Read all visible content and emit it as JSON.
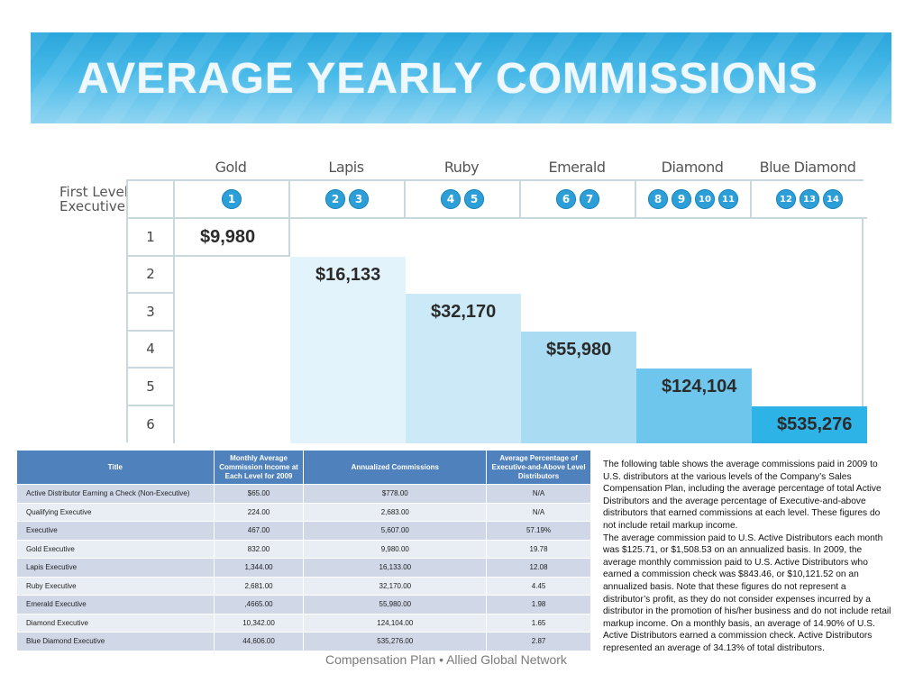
{
  "banner": {
    "title": "AVERAGE YEARLY COMMISSIONS"
  },
  "stair": {
    "first_level_label": "First Level Executives",
    "levels": [
      {
        "name": "Gold",
        "badges": [
          "1"
        ],
        "amount": "$9,980"
      },
      {
        "name": "Lapis",
        "badges": [
          "2",
          "3"
        ],
        "amount": "$16,133"
      },
      {
        "name": "Ruby",
        "badges": [
          "4",
          "5"
        ],
        "amount": "$32,170"
      },
      {
        "name": "Emerald",
        "badges": [
          "6",
          "7"
        ],
        "amount": "$55,980"
      },
      {
        "name": "Diamond",
        "badges": [
          "8",
          "9",
          "10",
          "11"
        ],
        "amount": "$124,104"
      },
      {
        "name": "Blue Diamond",
        "badges": [
          "12",
          "13",
          "14"
        ],
        "amount": "$535,276"
      }
    ],
    "rows": [
      "1",
      "2",
      "3",
      "4",
      "5",
      "6"
    ],
    "band_colors": [
      "#ffffff",
      "#e3f3fb",
      "#cbe9f7",
      "#a9dcf2",
      "#6fc6ec",
      "#2eb3e6"
    ]
  },
  "table": {
    "headers": {
      "title": "Title",
      "monthly": "Monthly Average Commission Income at Each Level for 2009",
      "annualized": "Annualized Commissions",
      "percentage": "Average Percentage of Executive-and-Above Level Distributors"
    },
    "rows": [
      {
        "title": "Active Distributor Earning a Check (Non-Executive)",
        "monthly": "$65.00",
        "annualized": "$778.00",
        "percentage": "N/A"
      },
      {
        "title": "Qualifying Executive",
        "monthly": "224.00",
        "annualized": "2,683.00",
        "percentage": "N/A"
      },
      {
        "title": "Executive",
        "monthly": "467.00",
        "annualized": "5,607.00",
        "percentage": "57.19%"
      },
      {
        "title": "Gold Executive",
        "monthly": "832.00",
        "annualized": "9,980.00",
        "percentage": "19.78"
      },
      {
        "title": "Lapis Executive",
        "monthly": "1,344.00",
        "annualized": "16,133.00",
        "percentage": "12.08"
      },
      {
        "title": "Ruby Executive",
        "monthly": "2,681.00",
        "annualized": "32,170.00",
        "percentage": "4.45"
      },
      {
        "title": "Emerald Executive",
        "monthly": ",4665.00",
        "annualized": "55,980.00",
        "percentage": "1.98"
      },
      {
        "title": "Diamond Executive",
        "monthly": "10,342.00",
        "annualized": "124,104.00",
        "percentage": "1.65"
      },
      {
        "title": "Blue Diamond Executive",
        "monthly": "44,606.00",
        "annualized": "535,276.00",
        "percentage": "2.87"
      }
    ]
  },
  "description": {
    "p1": "The following table shows the average commissions paid in 2009 to U.S. distributors at the various levels of the Company’s Sales Compensation Plan, including the average percentage of total Active Distributors and the average percentage of Executive-and-above distributors that earned commissions at  each level.  These figures do not include retail markup income.",
    "p2": "The average commission paid to U.S. Active Distributors each month was $125.71, or $1,508.53 on an annualized basis.  In 2009, the average monthly commission paid to U.S. Active Distributors who earned a commission check was $843.46, or $10,121.52 on an annualized basis.  Note that these figures do not represent a distributor’s profit, as they do not consider expenses incurred by a distributor in the promotion of his/her business and do not include retail markup income.  On a monthly basis, an average of 14.90% of U.S. Active Distributors earned a commission check.  Active Distributors represented an average of 34.13% of total distributors."
  },
  "footer": {
    "text": "Compensation Plan • Allied Global Network"
  }
}
